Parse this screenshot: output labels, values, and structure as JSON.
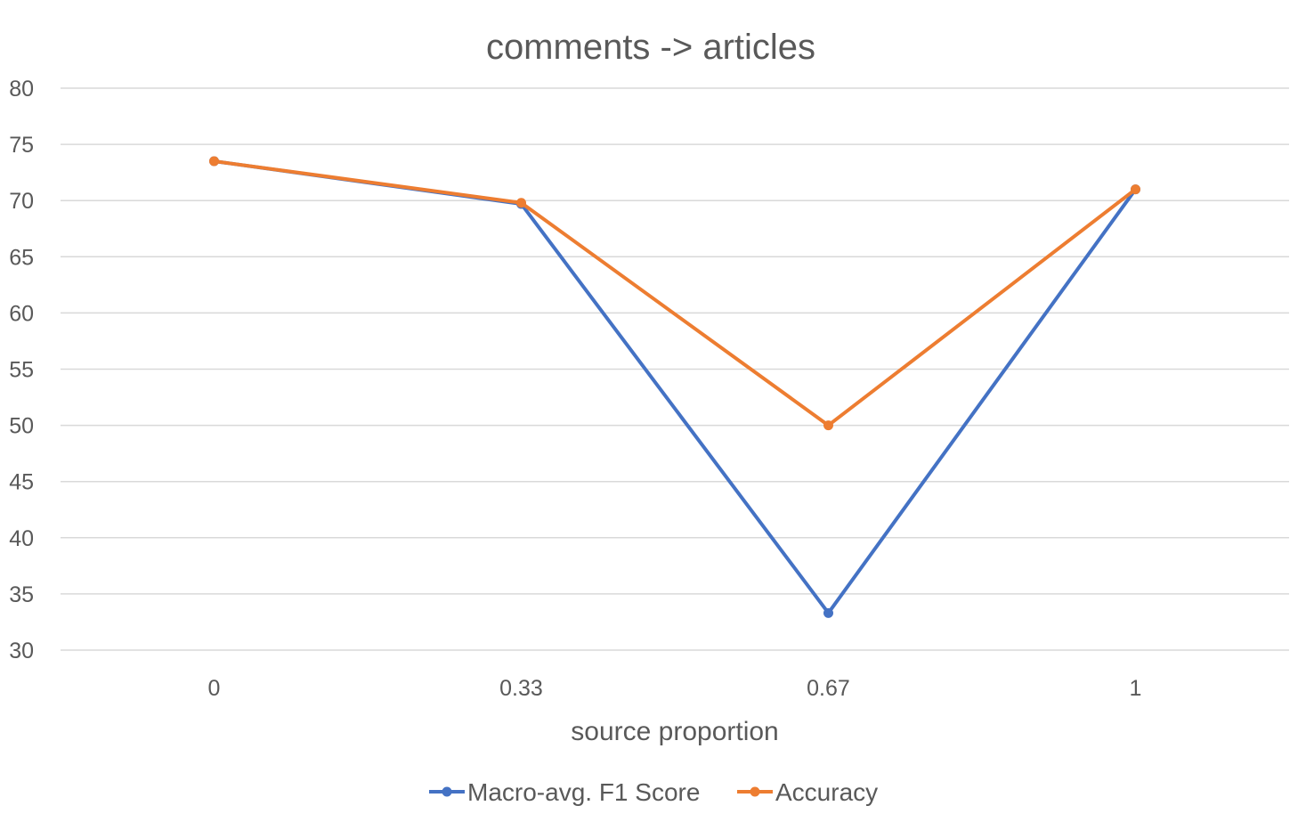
{
  "chart_data": {
    "type": "line",
    "title": "comments -> articles",
    "xlabel": "source proportion",
    "ylabel": "",
    "categories": [
      "0",
      "0.33",
      "0.67",
      "1"
    ],
    "ylim": [
      30,
      80
    ],
    "yticks": [
      30,
      35,
      40,
      45,
      50,
      55,
      60,
      65,
      70,
      75,
      80
    ],
    "grid": true,
    "legend_position": "bottom",
    "series": [
      {
        "name": "Macro-avg. F1 Score",
        "color": "#4472C4",
        "values": [
          73.5,
          69.7,
          33.3,
          71.0
        ]
      },
      {
        "name": "Accuracy",
        "color": "#ED7D31",
        "values": [
          73.5,
          69.8,
          50.0,
          71.0
        ]
      }
    ]
  }
}
